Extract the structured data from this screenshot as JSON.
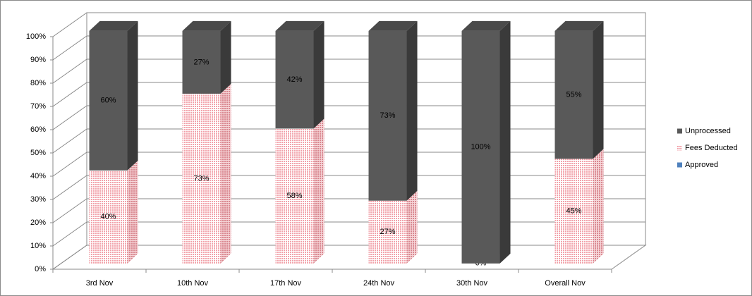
{
  "chart_data": {
    "type": "bar3d_stacked",
    "categories": [
      "3rd Nov",
      "10th Nov",
      "17th Nov",
      "24th Nov",
      "30th Nov",
      "Overall Nov"
    ],
    "series": [
      {
        "name": "Approved",
        "color": "#4f81bd",
        "values": [
          0,
          0,
          0,
          0,
          0,
          0
        ]
      },
      {
        "name": "Fees Deducted",
        "color": "#f2a3ab",
        "values": [
          40,
          73,
          58,
          27,
          0,
          45
        ],
        "value_labels": [
          "40%",
          "73%",
          "58%",
          "27%",
          "0%",
          "45%"
        ]
      },
      {
        "name": "Unprocessed",
        "color": "#595959",
        "values": [
          60,
          27,
          42,
          73,
          100,
          55
        ],
        "value_labels": [
          "60%",
          "27%",
          "42%",
          "73%",
          "100%",
          "55%"
        ]
      }
    ],
    "ylim": [
      0,
      100
    ],
    "yticks": [
      {
        "value": 0,
        "label": "0%"
      },
      {
        "value": 10,
        "label": "10%"
      },
      {
        "value": 20,
        "label": "20%"
      },
      {
        "value": 30,
        "label": "30%"
      },
      {
        "value": 40,
        "label": "40%"
      },
      {
        "value": 50,
        "label": "50%"
      },
      {
        "value": 60,
        "label": "60%"
      },
      {
        "value": 70,
        "label": "70%"
      },
      {
        "value": 80,
        "label": "80%"
      },
      {
        "value": 90,
        "label": "90%"
      },
      {
        "value": 100,
        "label": "100%"
      }
    ],
    "grid": true,
    "legend": "right"
  }
}
